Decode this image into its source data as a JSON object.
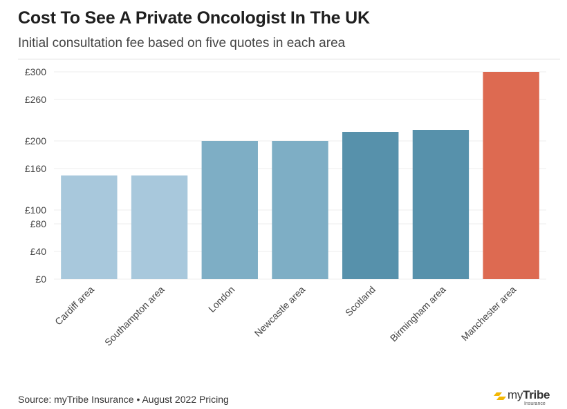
{
  "header": {
    "title": "Cost To See A Private Oncologist In The UK",
    "subtitle": "Initial consultation fee based on five quotes in each area"
  },
  "footer": {
    "source": "Source: myTribe Insurance • August 2022 Pricing",
    "logo_my": "my",
    "logo_tribe": "Tribe",
    "logo_sub": "Insurance"
  },
  "colors": {
    "light": "#a8c8dc",
    "medium": "#7eaec5",
    "dark": "#5791ab",
    "highlight": "#dd6a51",
    "grid": "#ececec",
    "logo_accent": "#f2b705"
  },
  "chart_data": {
    "type": "bar",
    "title": "Cost To See A Private Oncologist In The UK",
    "subtitle": "Initial consultation fee based on five quotes in each area",
    "categories": [
      "Cardiff area",
      "Southampton area",
      "London",
      "Newcastle area",
      "Scotland",
      "Birmingham area",
      "Manchester area"
    ],
    "values": [
      150,
      150,
      200,
      200,
      213,
      216,
      300
    ],
    "bar_shades": [
      "light",
      "light",
      "medium",
      "medium",
      "dark",
      "dark",
      "highlight"
    ],
    "yticks": [
      0,
      40,
      80,
      100,
      160,
      200,
      260,
      300
    ],
    "ytick_labels": [
      "£0",
      "£40",
      "£80",
      "£100",
      "£160",
      "£200",
      "£260",
      "£300"
    ],
    "ylim": [
      0,
      300
    ],
    "xlabel": "",
    "ylabel": "",
    "grid": true,
    "legend": "none"
  }
}
